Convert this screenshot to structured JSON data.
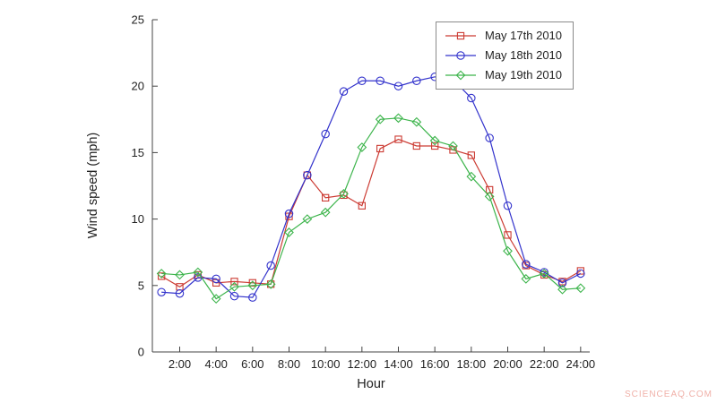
{
  "watermark": {
    "text": "SCIENCEAQ.COM",
    "color": "#f0b0a8"
  },
  "axis": {
    "color": "#444444",
    "tick_font_px": 13
  },
  "chart_data": {
    "type": "line",
    "title": "",
    "xlabel": "Hour",
    "ylabel": "Wind speed (mph)",
    "xlim": [
      0.5,
      24.5
    ],
    "ylim": [
      0,
      25
    ],
    "grid": false,
    "legend_position": "top-right",
    "x": [
      1,
      2,
      3,
      4,
      5,
      6,
      7,
      8,
      9,
      10,
      11,
      12,
      13,
      14,
      15,
      16,
      17,
      18,
      19,
      20,
      21,
      22,
      23,
      24
    ],
    "xticks": [
      2,
      4,
      6,
      8,
      10,
      12,
      14,
      16,
      18,
      20,
      22,
      24
    ],
    "xtick_labels": [
      "2:00",
      "4:00",
      "6:00",
      "8:00",
      "10:00",
      "12:00",
      "14:00",
      "16:00",
      "18:00",
      "20:00",
      "22:00",
      "24:00"
    ],
    "yticks": [
      0,
      5,
      10,
      15,
      20,
      25
    ],
    "ytick_labels": [
      "0",
      "5",
      "10",
      "15",
      "20",
      "25"
    ],
    "series": [
      {
        "name": "May 17th 2010",
        "color": "#cc3b33",
        "marker": "square",
        "values": [
          5.7,
          4.9,
          5.8,
          5.2,
          5.3,
          5.2,
          5.1,
          10.2,
          13.3,
          11.6,
          11.8,
          11.0,
          15.3,
          16.0,
          15.5,
          15.5,
          15.2,
          14.8,
          12.2,
          8.8,
          6.5,
          5.8,
          5.3,
          6.1
        ]
      },
      {
        "name": "May 18th 2010",
        "color": "#3333cc",
        "marker": "circle",
        "values": [
          4.5,
          4.4,
          5.6,
          5.5,
          4.2,
          4.1,
          6.5,
          10.4,
          13.3,
          16.4,
          19.6,
          20.4,
          20.4,
          20.0,
          20.4,
          20.7,
          20.5,
          19.1,
          16.1,
          11.0,
          6.6,
          6.0,
          5.2,
          5.9
        ]
      },
      {
        "name": "May 19th 2010",
        "color": "#3cb44b",
        "marker": "diamond",
        "values": [
          5.9,
          5.8,
          6.0,
          4.0,
          4.9,
          5.0,
          5.1,
          9.0,
          10.0,
          10.5,
          11.9,
          15.4,
          17.5,
          17.6,
          17.3,
          15.9,
          15.5,
          13.2,
          11.7,
          7.6,
          5.5,
          5.9,
          4.7,
          4.8
        ]
      }
    ]
  }
}
